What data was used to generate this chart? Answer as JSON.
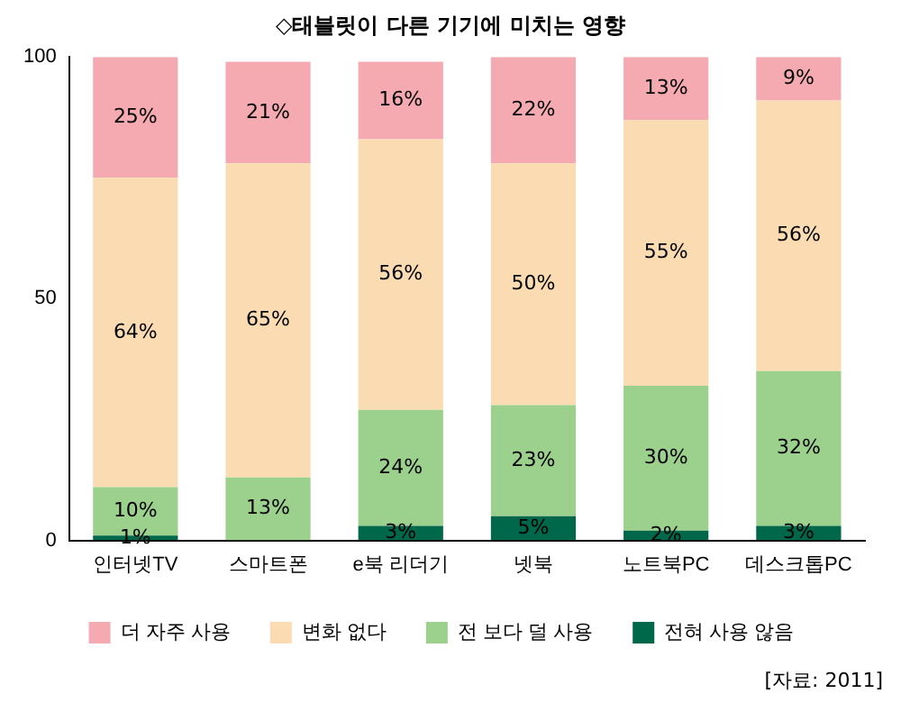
{
  "chart_data": {
    "type": "bar",
    "stacked": true,
    "title": "◇태블릿이 다른 기기에 미치는 영향",
    "categories": [
      "인터넷TV",
      "스마트폰",
      "e북 리더기",
      "넷북",
      "노트북PC",
      "데스크톱PC"
    ],
    "series": [
      {
        "name": "전혀 사용 않음",
        "color": "#00684a",
        "values": [
          1,
          null,
          3,
          5,
          2,
          3
        ],
        "value_labels": [
          "1%",
          null,
          "3%",
          "5%",
          "2%",
          "3%"
        ]
      },
      {
        "name": "전 보다 덜 사용",
        "color": "#9bd18d",
        "values": [
          10,
          13,
          24,
          23,
          30,
          32
        ],
        "value_labels": [
          "10%",
          "13%",
          "24%",
          "23%",
          "30%",
          "32%"
        ]
      },
      {
        "name": "변화 없다",
        "color": "#fbdcb2",
        "values": [
          64,
          65,
          56,
          50,
          55,
          56
        ],
        "value_labels": [
          "64%",
          "65%",
          "56%",
          "50%",
          "55%",
          "56%"
        ]
      },
      {
        "name": "더 자주 사용",
        "color": "#f5aab2",
        "values": [
          25,
          21,
          16,
          22,
          13,
          9
        ],
        "value_labels": [
          "25%",
          "21%",
          "16%",
          "22%",
          "13%",
          "9%"
        ]
      }
    ],
    "ylim": [
      0,
      100
    ],
    "yticks": [
      0,
      50,
      100
    ],
    "grid": false,
    "legend": "bottom",
    "annotations": [
      "[자료: 2011]"
    ]
  }
}
